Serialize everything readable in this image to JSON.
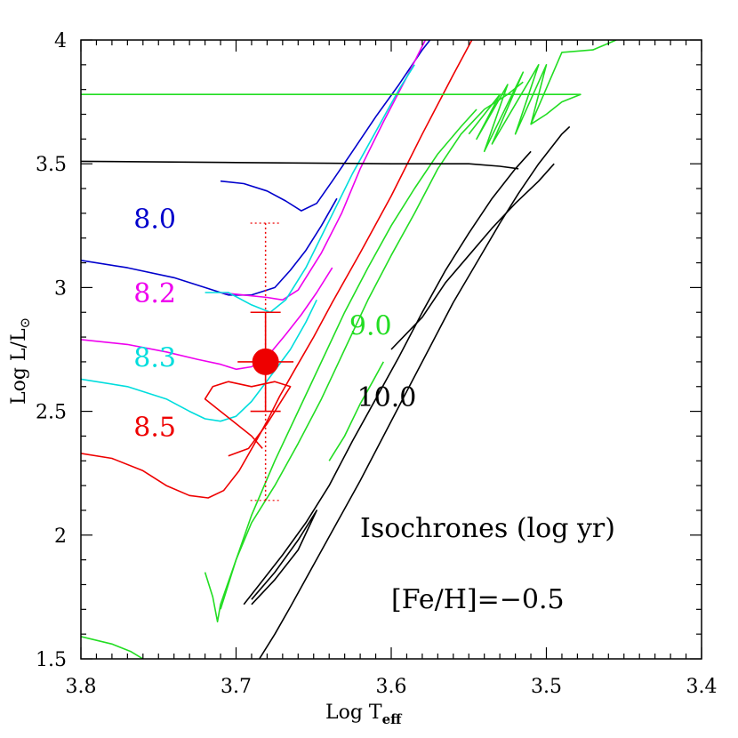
{
  "chart_data": {
    "type": "line",
    "title": "",
    "xlabel_main": "Log T",
    "xlabel_sub": "eff",
    "ylabel_main": "Log L/L",
    "ylabel_symbol": "⊙",
    "xlim": [
      3.8,
      3.4
    ],
    "ylim": [
      1.5,
      4.0
    ],
    "x_reversed": true,
    "x_ticks": [
      "3.8",
      "3.7",
      "3.6",
      "3.5",
      "3.4"
    ],
    "y_ticks": [
      "1.5",
      "2",
      "2.5",
      "3",
      "3.5",
      "4"
    ],
    "grid": false,
    "legend": "none",
    "annotations": {
      "isochrones_label": "Isochrones (log yr)",
      "metallicity_label": "[Fe/H]=−0.5"
    },
    "series": [
      {
        "name": "8.0",
        "color": "#0000cc",
        "label_at": [
          3.766,
          3.24
        ],
        "segments": [
          [
            [
              3.8,
              3.11
            ],
            [
              3.77,
              3.08
            ],
            [
              3.74,
              3.04
            ],
            [
              3.72,
              3.0
            ],
            [
              3.705,
              2.97
            ],
            [
              3.69,
              2.97
            ],
            [
              3.675,
              3.0
            ],
            [
              3.665,
              3.07
            ],
            [
              3.655,
              3.15
            ],
            [
              3.645,
              3.25
            ],
            [
              3.635,
              3.36
            ]
          ],
          [
            [
              3.71,
              3.43
            ],
            [
              3.695,
              3.42
            ],
            [
              3.68,
              3.39
            ],
            [
              3.668,
              3.35
            ],
            [
              3.658,
              3.31
            ],
            [
              3.648,
              3.34
            ],
            [
              3.638,
              3.43
            ],
            [
              3.625,
              3.55
            ],
            [
              3.61,
              3.69
            ],
            [
              3.595,
              3.82
            ],
            [
              3.58,
              3.96
            ],
            [
              3.575,
              4.0
            ]
          ]
        ]
      },
      {
        "name": "8.2",
        "color": "#ee00ee",
        "label_at": [
          3.766,
          2.94
        ],
        "segments": [
          [
            [
              3.8,
              2.79
            ],
            [
              3.77,
              2.77
            ],
            [
              3.745,
              2.74
            ],
            [
              3.725,
              2.71
            ],
            [
              3.71,
              2.69
            ],
            [
              3.7,
              2.67
            ],
            [
              3.69,
              2.68
            ],
            [
              3.68,
              2.72
            ],
            [
              3.668,
              2.81
            ],
            [
              3.658,
              2.89
            ],
            [
              3.648,
              2.98
            ],
            [
              3.638,
              3.08
            ]
          ],
          [
            [
              3.71,
              2.98
            ],
            [
              3.695,
              2.97
            ],
            [
              3.68,
              2.96
            ],
            [
              3.67,
              2.95
            ],
            [
              3.66,
              2.99
            ],
            [
              3.645,
              3.14
            ],
            [
              3.632,
              3.3
            ],
            [
              3.62,
              3.48
            ],
            [
              3.605,
              3.67
            ],
            [
              3.59,
              3.85
            ],
            [
              3.578,
              4.0
            ]
          ]
        ]
      },
      {
        "name": "8.3",
        "color": "#00dddd",
        "label_at": [
          3.766,
          2.68
        ],
        "segments": [
          [
            [
              3.8,
              2.63
            ],
            [
              3.77,
              2.6
            ],
            [
              3.745,
              2.55
            ],
            [
              3.73,
              2.5
            ],
            [
              3.72,
              2.47
            ],
            [
              3.71,
              2.46
            ],
            [
              3.7,
              2.48
            ],
            [
              3.69,
              2.54
            ],
            [
              3.678,
              2.64
            ],
            [
              3.665,
              2.75
            ],
            [
              3.655,
              2.86
            ],
            [
              3.648,
              2.95
            ]
          ],
          [
            [
              3.72,
              2.98
            ],
            [
              3.705,
              2.98
            ],
            [
              3.69,
              2.93
            ],
            [
              3.678,
              2.9
            ],
            [
              3.668,
              2.95
            ],
            [
              3.655,
              3.08
            ],
            [
              3.64,
              3.27
            ],
            [
              3.625,
              3.46
            ],
            [
              3.61,
              3.63
            ],
            [
              3.595,
              3.8
            ],
            [
              3.585,
              3.9
            ]
          ]
        ]
      },
      {
        "name": "8.5",
        "color": "#ee0000",
        "label_at": [
          3.766,
          2.4
        ],
        "segments": [
          [
            [
              3.8,
              2.33
            ],
            [
              3.78,
              2.31
            ],
            [
              3.76,
              2.26
            ],
            [
              3.745,
              2.2
            ],
            [
              3.73,
              2.16
            ],
            [
              3.718,
              2.15
            ],
            [
              3.708,
              2.18
            ],
            [
              3.698,
              2.26
            ],
            [
              3.688,
              2.37
            ],
            [
              3.68,
              2.46
            ],
            [
              3.672,
              2.56
            ],
            [
              3.662,
              2.67
            ],
            [
              3.65,
              2.8
            ],
            [
              3.638,
              2.94
            ],
            [
              3.62,
              3.14
            ],
            [
              3.6,
              3.37
            ],
            [
              3.58,
              3.62
            ],
            [
              3.56,
              3.86
            ],
            [
              3.548,
              4.0
            ]
          ],
          [
            [
              3.705,
              2.32
            ],
            [
              3.692,
              2.35
            ],
            [
              3.68,
              2.45
            ],
            [
              3.672,
              2.53
            ],
            [
              3.665,
              2.6
            ],
            [
              3.675,
              2.62
            ],
            [
              3.69,
              2.6
            ],
            [
              3.705,
              2.62
            ],
            [
              3.715,
              2.6
            ],
            [
              3.72,
              2.55
            ],
            [
              3.71,
              2.5
            ],
            [
              3.7,
              2.45
            ],
            [
              3.69,
              2.4
            ],
            [
              3.683,
              2.35
            ]
          ]
        ]
      },
      {
        "name": "9.0",
        "color": "#22dd22",
        "label_at": [
          3.627,
          2.81
        ],
        "segments": [
          [
            [
              3.8,
              1.59
            ],
            [
              3.78,
              1.56
            ],
            [
              3.768,
              1.53
            ],
            [
              3.76,
              1.5
            ]
          ],
          [
            [
              3.72,
              1.85
            ],
            [
              3.715,
              1.75
            ],
            [
              3.712,
              1.65
            ],
            [
              3.71,
              1.72
            ],
            [
              3.7,
              1.9
            ],
            [
              3.69,
              2.05
            ],
            [
              3.675,
              2.2
            ],
            [
              3.66,
              2.37
            ],
            [
              3.645,
              2.55
            ],
            [
              3.63,
              2.75
            ],
            [
              3.615,
              2.95
            ],
            [
              3.6,
              3.13
            ],
            [
              3.585,
              3.3
            ],
            [
              3.57,
              3.48
            ],
            [
              3.555,
              3.62
            ],
            [
              3.54,
              3.72
            ],
            [
              3.525,
              3.78
            ],
            [
              3.515,
              3.83
            ]
          ],
          [
            [
              3.71,
              1.7
            ],
            [
              3.7,
              1.9
            ],
            [
              3.69,
              2.08
            ],
            [
              3.675,
              2.3
            ],
            [
              3.66,
              2.5
            ],
            [
              3.645,
              2.7
            ],
            [
              3.63,
              2.9
            ],
            [
              3.615,
              3.08
            ],
            [
              3.6,
              3.25
            ],
            [
              3.585,
              3.4
            ],
            [
              3.57,
              3.54
            ],
            [
              3.555,
              3.65
            ],
            [
              3.545,
              3.72
            ]
          ],
          [
            [
              3.8,
              3.78
            ],
            [
              3.73,
              3.78
            ],
            [
              3.66,
              3.78
            ],
            [
              3.6,
              3.78
            ],
            [
              3.55,
              3.78
            ],
            [
              3.515,
              3.78
            ],
            [
              3.49,
              3.78
            ],
            [
              3.478,
              3.78
            ],
            [
              3.49,
              3.75
            ],
            [
              3.5,
              3.7
            ],
            [
              3.51,
              3.66
            ]
          ],
          [
            [
              3.55,
              3.62
            ],
            [
              3.53,
              3.78
            ],
            [
              3.545,
              3.6
            ],
            [
              3.525,
              3.82
            ],
            [
              3.54,
              3.55
            ],
            [
              3.515,
              3.87
            ],
            [
              3.535,
              3.58
            ],
            [
              3.505,
              3.9
            ],
            [
              3.52,
              3.62
            ],
            [
              3.5,
              3.9
            ],
            [
              3.51,
              3.66
            ],
            [
              3.49,
              3.95
            ],
            [
              3.47,
              3.96
            ],
            [
              3.455,
              4.0
            ]
          ],
          [
            [
              3.64,
              2.3
            ],
            [
              3.63,
              2.4
            ],
            [
              3.62,
              2.53
            ],
            [
              3.612,
              2.62
            ],
            [
              3.605,
              2.7
            ]
          ]
        ]
      },
      {
        "name": "10.0",
        "color": "#000000",
        "label_at": [
          3.622,
          2.52
        ],
        "segments": [
          [
            [
              3.8,
              3.51
            ],
            [
              3.7,
              3.505
            ],
            [
              3.6,
              3.5
            ],
            [
              3.55,
              3.5
            ],
            [
              3.53,
              3.49
            ],
            [
              3.518,
              3.48
            ]
          ],
          [
            [
              3.685,
              1.5
            ],
            [
              3.675,
              1.6
            ],
            [
              3.665,
              1.71
            ],
            [
              3.65,
              1.88
            ],
            [
              3.635,
              2.05
            ],
            [
              3.62,
              2.22
            ],
            [
              3.605,
              2.4
            ],
            [
              3.59,
              2.58
            ],
            [
              3.575,
              2.76
            ],
            [
              3.56,
              2.94
            ],
            [
              3.545,
              3.1
            ],
            [
              3.53,
              3.26
            ],
            [
              3.518,
              3.38
            ],
            [
              3.505,
              3.5
            ],
            [
              3.49,
              3.62
            ],
            [
              3.485,
              3.65
            ]
          ],
          [
            [
              3.695,
              1.72
            ],
            [
              3.685,
              1.8
            ],
            [
              3.67,
              1.92
            ],
            [
              3.655,
              2.05
            ],
            [
              3.64,
              2.2
            ],
            [
              3.625,
              2.38
            ],
            [
              3.61,
              2.55
            ],
            [
              3.595,
              2.72
            ],
            [
              3.58,
              2.9
            ],
            [
              3.565,
              3.07
            ],
            [
              3.55,
              3.22
            ],
            [
              3.535,
              3.36
            ],
            [
              3.52,
              3.48
            ],
            [
              3.51,
              3.55
            ]
          ],
          [
            [
              3.69,
              1.74
            ],
            [
              3.675,
              1.85
            ],
            [
              3.66,
              1.98
            ],
            [
              3.648,
              2.1
            ],
            [
              3.66,
              1.94
            ],
            [
              3.675,
              1.82
            ],
            [
              3.69,
              1.72
            ]
          ],
          [
            [
              3.6,
              2.75
            ],
            [
              3.58,
              2.88
            ],
            [
              3.565,
              3.02
            ],
            [
              3.55,
              3.13
            ],
            [
              3.535,
              3.24
            ],
            [
              3.52,
              3.34
            ],
            [
              3.505,
              3.43
            ],
            [
              3.495,
              3.5
            ]
          ]
        ]
      }
    ],
    "observed_point": {
      "x": 3.681,
      "y": 2.7,
      "color": "#ee0000",
      "x_err": 0.004,
      "y_err_solid": [
        2.5,
        2.9
      ],
      "y_err_dotted": [
        2.14,
        3.26
      ]
    }
  }
}
